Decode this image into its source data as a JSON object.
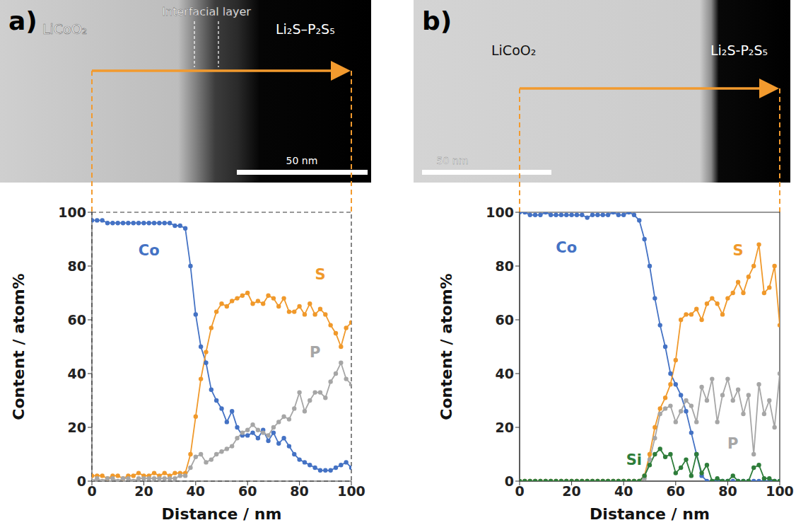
{
  "chart_data": [
    {
      "type": "line",
      "xlabel": "Distance / nm",
      "ylabel": "Content / atom%",
      "xlim": [
        0,
        100
      ],
      "xticks": [
        0,
        20,
        40,
        60,
        80,
        100
      ],
      "ylim": [
        0,
        100
      ],
      "yticks": [
        0,
        20,
        40,
        60,
        80,
        100
      ],
      "grid": false,
      "marker": "circle",
      "x": [
        0,
        2,
        4,
        6,
        8,
        10,
        12,
        14,
        16,
        18,
        20,
        22,
        24,
        26,
        28,
        30,
        32,
        34,
        36,
        38,
        40,
        42,
        44,
        46,
        48,
        50,
        52,
        54,
        56,
        58,
        60,
        62,
        64,
        66,
        68,
        70,
        72,
        74,
        76,
        78,
        80,
        82,
        84,
        86,
        88,
        90,
        92,
        94,
        96,
        98,
        100
      ],
      "series": [
        {
          "name": "Co",
          "color": "#4472c4",
          "values": [
            97,
            97,
            97,
            96,
            96,
            96,
            96,
            96,
            96,
            96,
            96,
            96,
            96,
            96,
            96,
            96,
            95,
            95,
            94,
            80,
            62,
            50,
            44,
            34,
            30,
            27,
            22,
            26,
            20,
            17,
            17,
            18,
            16,
            19,
            15,
            18,
            14,
            16,
            13,
            10,
            8,
            7,
            6,
            5,
            4,
            4,
            4,
            5,
            6,
            7,
            5
          ]
        },
        {
          "name": "S",
          "color": "#f0992b",
          "values": [
            2,
            2,
            2,
            1,
            2,
            2,
            1,
            2,
            2,
            3,
            2,
            2,
            3,
            2,
            3,
            2,
            3,
            3,
            3,
            10,
            24,
            38,
            48,
            57,
            63,
            66,
            65,
            67,
            68,
            69,
            70,
            66,
            67,
            66,
            69,
            68,
            65,
            68,
            63,
            63,
            65,
            62,
            66,
            62,
            64,
            62,
            58,
            55,
            50,
            57,
            59
          ]
        },
        {
          "name": "P",
          "color": "#a6a6a6",
          "values": [
            0,
            1,
            0,
            1,
            1,
            0,
            1,
            1,
            0,
            1,
            1,
            1,
            1,
            1,
            1,
            1,
            1,
            2,
            2,
            5,
            9,
            10,
            7,
            8,
            10,
            11,
            12,
            13,
            16,
            18,
            19,
            21,
            19,
            18,
            17,
            20,
            22,
            24,
            23,
            27,
            33,
            26,
            30,
            33,
            33,
            31,
            37,
            40,
            44,
            38,
            36
          ]
        }
      ]
    },
    {
      "type": "line",
      "xlabel": "Distance / nm",
      "ylabel": "Content / atom%",
      "xlim": [
        0,
        100
      ],
      "xticks": [
        0,
        20,
        40,
        60,
        80,
        100
      ],
      "ylim": [
        0,
        100
      ],
      "yticks": [
        0,
        20,
        40,
        60,
        80,
        100
      ],
      "grid": false,
      "marker": "circle",
      "x": [
        0,
        2,
        4,
        6,
        8,
        10,
        12,
        14,
        16,
        18,
        20,
        22,
        24,
        26,
        28,
        30,
        32,
        34,
        36,
        38,
        40,
        42,
        44,
        46,
        48,
        50,
        52,
        54,
        56,
        58,
        60,
        62,
        64,
        66,
        68,
        70,
        72,
        74,
        76,
        78,
        80,
        82,
        84,
        86,
        88,
        90,
        92,
        94,
        96,
        98,
        100
      ],
      "series": [
        {
          "name": "Co",
          "color": "#4472c4",
          "values": [
            100,
            100,
            99,
            99,
            99,
            100,
            99,
            99,
            99,
            99,
            99,
            99,
            99,
            98,
            99,
            99,
            99,
            99,
            100,
            99,
            99,
            100,
            99,
            97,
            90,
            80,
            68,
            58,
            50,
            40,
            36,
            32,
            26,
            18,
            10,
            2,
            0,
            0,
            0,
            0,
            0,
            0,
            0,
            0,
            0,
            0,
            0,
            0,
            0,
            0,
            0
          ]
        },
        {
          "name": "S",
          "color": "#f0992b",
          "values": [
            0,
            0,
            0,
            0,
            0,
            0,
            0,
            0,
            0,
            0,
            0,
            0,
            0,
            0,
            0,
            0,
            0,
            0,
            0,
            0,
            0,
            0,
            0,
            0,
            2,
            10,
            20,
            27,
            31,
            36,
            45,
            60,
            62,
            62,
            64,
            60,
            66,
            68,
            66,
            62,
            68,
            70,
            74,
            70,
            76,
            80,
            88,
            70,
            72,
            80,
            58
          ]
        },
        {
          "name": "P",
          "color": "#a6a6a6",
          "values": [
            0,
            0,
            0,
            0,
            0,
            0,
            0,
            0,
            0,
            0,
            0,
            0,
            0,
            0,
            0,
            0,
            0,
            0,
            0,
            0,
            0,
            0,
            0,
            0,
            1,
            8,
            16,
            25,
            27,
            28,
            22,
            26,
            30,
            28,
            22,
            35,
            30,
            38,
            22,
            32,
            38,
            30,
            34,
            25,
            32,
            10,
            36,
            25,
            30,
            20,
            40
          ]
        },
        {
          "name": "Si",
          "color": "#2e7d3a",
          "values": [
            0,
            0,
            0,
            0,
            0,
            0,
            0,
            0,
            0,
            0,
            0,
            0,
            0,
            0,
            0,
            0,
            0,
            0,
            0,
            0,
            0,
            0,
            0,
            0,
            2,
            6,
            10,
            12,
            9,
            10,
            3,
            5,
            8,
            2,
            10,
            3,
            6,
            0,
            1,
            0,
            0,
            2,
            0,
            0,
            0,
            5,
            6,
            1,
            1,
            0,
            0
          ]
        }
      ]
    }
  ],
  "images": [
    {
      "panel": "a)",
      "labels": [
        "LiCoO₂",
        "Li₂S–P₂S₅"
      ],
      "interfacial_layer": "Interfacial layer",
      "scale_bar": "50 nm"
    },
    {
      "panel": "b)",
      "labels": [
        "LiCoO₂",
        "Li₂S-P₂S₅"
      ],
      "scale_bar": "50 nm"
    }
  ]
}
